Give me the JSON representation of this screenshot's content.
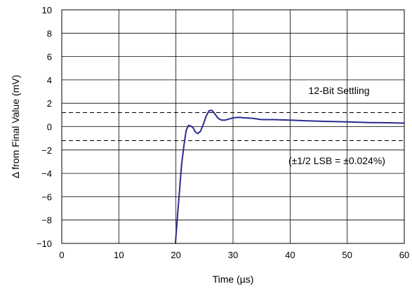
{
  "chart_data": {
    "type": "line",
    "title": "",
    "xlabel": "Time (µs)",
    "ylabel": "Δ from Final Value (mV)",
    "xlim": [
      0,
      60
    ],
    "ylim": [
      -10,
      10
    ],
    "x_ticks": [
      0,
      10,
      20,
      30,
      40,
      50,
      60
    ],
    "y_ticks": [
      -10,
      -8,
      -6,
      -4,
      -2,
      0,
      2,
      4,
      6,
      8,
      10
    ],
    "x_tick_labels": [
      "0",
      "10",
      "20",
      "30",
      "40",
      "50",
      "60"
    ],
    "y_tick_labels": [
      "−10",
      "−8",
      "−6",
      "−4",
      "−2",
      "0",
      "2",
      "4",
      "6",
      "8",
      "10"
    ],
    "grid": true,
    "legend": "none",
    "annotations": {
      "settling_label": "12-Bit Settling",
      "lsb_label": "(±1/2 LSB = ±0.024%)"
    },
    "reference_lines": [
      {
        "y": 1.2,
        "style": "dashed"
      },
      {
        "y": -1.2,
        "style": "dashed"
      }
    ],
    "series": [
      {
        "color": "#2b2b8f",
        "x": [
          19.9,
          20.3,
          20.7,
          21.0,
          21.4,
          21.8,
          22.2,
          22.6,
          23.0,
          23.4,
          23.8,
          24.3,
          24.8,
          25.3,
          25.8,
          26.3,
          26.8,
          27.4,
          28.0,
          28.6,
          29.3,
          30.0,
          31.0,
          32.0,
          33.5,
          35.0,
          37.0,
          40.0,
          43.0,
          46.0,
          50.0,
          54.0,
          57.0,
          60.0
        ],
        "y": [
          -10.0,
          -7.5,
          -5.0,
          -3.2,
          -1.6,
          -0.3,
          0.1,
          0.05,
          -0.1,
          -0.45,
          -0.6,
          -0.4,
          0.2,
          0.9,
          1.35,
          1.4,
          1.1,
          0.7,
          0.55,
          0.55,
          0.65,
          0.75,
          0.8,
          0.75,
          0.7,
          0.6,
          0.6,
          0.55,
          0.5,
          0.45,
          0.4,
          0.35,
          0.33,
          0.3
        ]
      }
    ]
  }
}
